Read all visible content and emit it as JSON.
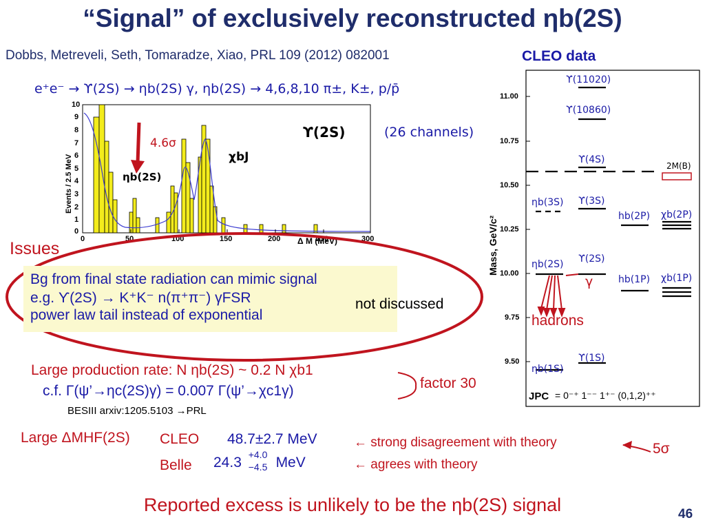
{
  "title": "“Signal” of exclusively reconstructed ηb(2S)",
  "reference": "Dobbs, Metreveli, Seth, Tomaradze, Xiao, PRL 109 (2012) 082001",
  "cleo_data_label": "CLEO data",
  "process": "e⁺e⁻ → ϒ(2S) → ηb(2S) γ,  ηb(2S) → 4,6,8,10 π±, K±, p/p̄",
  "channels": "(26 channels)",
  "histogram": {
    "y_axis_label": "Events / 2.5 MeV",
    "x_axis_label": "Δ M (MeV)",
    "y_ticks": [
      "10",
      "9",
      "8",
      "7",
      "6",
      "5",
      "4",
      "3",
      "2",
      "1",
      "0"
    ],
    "x_ticks": [
      "0",
      "50",
      "100",
      "150",
      "200",
      "250",
      "300"
    ],
    "upsilon_label": "ϒ(2S)",
    "chi_label": "χbJ",
    "eta_label": "ηb(2S)",
    "significance": "4.6σ",
    "fill_color": "#f3ec1c",
    "fit_color": "#3a3ad0"
  },
  "issues": {
    "heading": "Issues",
    "line1": "Bg from final state radiation can mimic signal",
    "line2": "e.g. ϒ(2S) → K⁺K⁻ n(π⁺π⁻) γFSR",
    "line3": "power law tail instead of exponential",
    "not_discussed": "not discussed"
  },
  "production": {
    "line1": "Large production rate: N ηb(2S) ~ 0.2 N χb1",
    "line2": "c.f. Γ(ψ’→ηc(2S)γ) = 0.007 Γ(ψ’→χc1γ)",
    "besiii": "BESIII arxiv:1205.5103  →PRL",
    "factor": "factor 30"
  },
  "hyperfine": {
    "label": "Large ΔMHF(2S)",
    "cleo_label": "CLEO",
    "cleo_value": "48.7±2.7 MeV",
    "belle_label": "Belle",
    "belle_value": "24.3",
    "belle_plus": "+4.0",
    "belle_minus": "−4.5",
    "belle_unit": "MeV",
    "disagree": "← strong disagreement with theory",
    "agree": "← agrees with theory",
    "sigma": "5σ"
  },
  "level_diagram": {
    "y_axis_label": "Mass, GeV/c²",
    "y_ticks": [
      "11.00",
      "10.75",
      "10.50",
      "10.25",
      "10.00",
      "9.75",
      "9.50"
    ],
    "states": [
      "ϒ(11020)",
      "ϒ(10860)",
      "ϒ(4S)",
      "2M(B)",
      "ηb(3S)",
      "ϒ(3S)",
      "hb(2P)",
      "χb(2P)",
      "ηb(2S)",
      "ϒ(2S)",
      "hb(1P)",
      "χb(1P)",
      "ϒ(1S)",
      "ηb(1S)"
    ],
    "gamma": "γ",
    "hadrons": "hadrons",
    "jpc_label": "JPC",
    "jpc_values": "= 0⁻⁺  1⁻⁻     1⁺⁻  (0,1,2)⁺⁺"
  },
  "conclusion": "Reported excess is unlikely to be the ηb(2S) signal",
  "slide_number": "46"
}
